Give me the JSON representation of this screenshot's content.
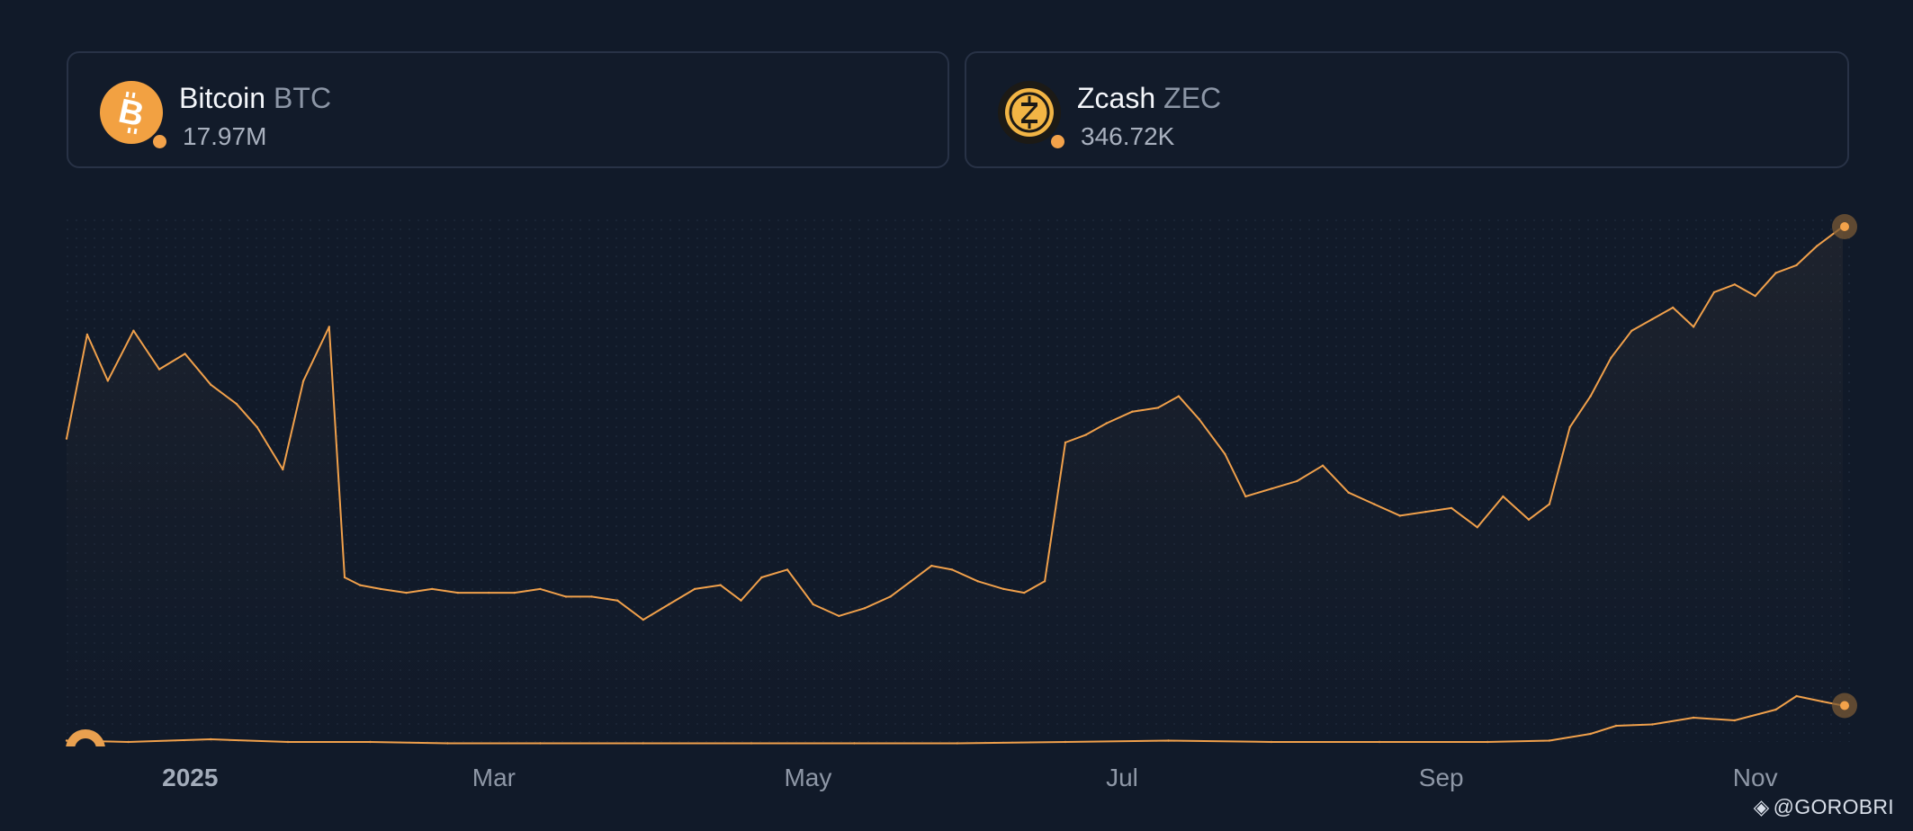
{
  "cards": [
    {
      "name": "Bitcoin",
      "ticker": "BTC",
      "value": "17.97M",
      "logo_icon": "bitcoin-logo-icon",
      "logo_color": "#f2a142",
      "status_color": "#f3a24a"
    },
    {
      "name": "Zcash",
      "ticker": "ZEC",
      "value": "346.72K",
      "logo_icon": "zcash-logo-icon",
      "logo_color": "#f2b545",
      "status_color": "#f3a24a"
    }
  ],
  "chart_data": {
    "type": "line",
    "title": "",
    "xlabel": "",
    "ylabel": "",
    "x_tick_labels": [
      "2025",
      "Mar",
      "May",
      "Jul",
      "Sep",
      "Nov"
    ],
    "grid": false,
    "series": [
      {
        "name": "Bitcoin",
        "color": "#f0a04b",
        "x": [
          "2024-12-08",
          "2024-12-12",
          "2024-12-16",
          "2024-12-21",
          "2024-12-26",
          "2024-12-31",
          "2025-01-05",
          "2025-01-10",
          "2025-01-14",
          "2025-01-19",
          "2025-01-23",
          "2025-01-28",
          "2025-01-31",
          "2025-02-03",
          "2025-02-07",
          "2025-02-12",
          "2025-02-17",
          "2025-02-22",
          "2025-02-28",
          "2025-03-05",
          "2025-03-10",
          "2025-03-15",
          "2025-03-20",
          "2025-03-25",
          "2025-03-30",
          "2025-04-04",
          "2025-04-09",
          "2025-04-14",
          "2025-04-18",
          "2025-04-22",
          "2025-04-27",
          "2025-05-02",
          "2025-05-07",
          "2025-05-12",
          "2025-05-17",
          "2025-05-21",
          "2025-05-25",
          "2025-05-29",
          "2025-06-03",
          "2025-06-08",
          "2025-06-12",
          "2025-06-16",
          "2025-06-20",
          "2025-06-24",
          "2025-06-28",
          "2025-07-03",
          "2025-07-08",
          "2025-07-12",
          "2025-07-16",
          "2025-07-21",
          "2025-07-25",
          "2025-07-30",
          "2025-08-04",
          "2025-08-09",
          "2025-08-14",
          "2025-08-19",
          "2025-08-24",
          "2025-08-29",
          "2025-09-03",
          "2025-09-08",
          "2025-09-13",
          "2025-09-18",
          "2025-09-22",
          "2025-09-26",
          "2025-09-30",
          "2025-10-04",
          "2025-10-08",
          "2025-10-12",
          "2025-10-16",
          "2025-10-20",
          "2025-10-24",
          "2025-10-28",
          "2025-11-01",
          "2025-11-05",
          "2025-11-09",
          "2025-11-13",
          "2025-11-18"
        ],
        "values": [
          45,
          72,
          60,
          73,
          63,
          67,
          59,
          54,
          48,
          37,
          60,
          74,
          9,
          7,
          6,
          5,
          6,
          5,
          5,
          5,
          6,
          4,
          4,
          3,
          -2,
          2,
          6,
          7,
          3,
          9,
          11,
          2,
          -1,
          1,
          4,
          8,
          12,
          11,
          8,
          6,
          5,
          8,
          44,
          46,
          49,
          52,
          53,
          56,
          50,
          41,
          30,
          32,
          34,
          38,
          31,
          28,
          25,
          26,
          27,
          22,
          30,
          24,
          28,
          48,
          56,
          66,
          73,
          76,
          79,
          74,
          83,
          85,
          82,
          88,
          90,
          95,
          100
        ]
      },
      {
        "name": "Zcash",
        "color": "#f0a04b",
        "x": [
          "2024-12-08",
          "2024-12-20",
          "2025-01-05",
          "2025-01-20",
          "2025-02-05",
          "2025-02-20",
          "2025-03-10",
          "2025-03-30",
          "2025-04-20",
          "2025-05-10",
          "2025-05-30",
          "2025-06-20",
          "2025-07-10",
          "2025-07-30",
          "2025-08-20",
          "2025-09-10",
          "2025-09-22",
          "2025-09-30",
          "2025-10-05",
          "2025-10-12",
          "2025-10-20",
          "2025-10-28",
          "2025-11-05",
          "2025-11-09",
          "2025-11-14",
          "2025-11-18"
        ],
        "values": [
          0.3,
          0.2,
          0.4,
          0.2,
          0.2,
          0.1,
          0.1,
          0.1,
          0.1,
          0.1,
          0.1,
          0.2,
          0.3,
          0.2,
          0.2,
          0.2,
          0.3,
          0.8,
          1.4,
          1.5,
          2.0,
          1.8,
          2.6,
          3.6,
          3.2,
          2.9
        ]
      }
    ]
  },
  "watermark": {
    "text": "@GOROBRI",
    "icon": "binance-logo-icon"
  }
}
